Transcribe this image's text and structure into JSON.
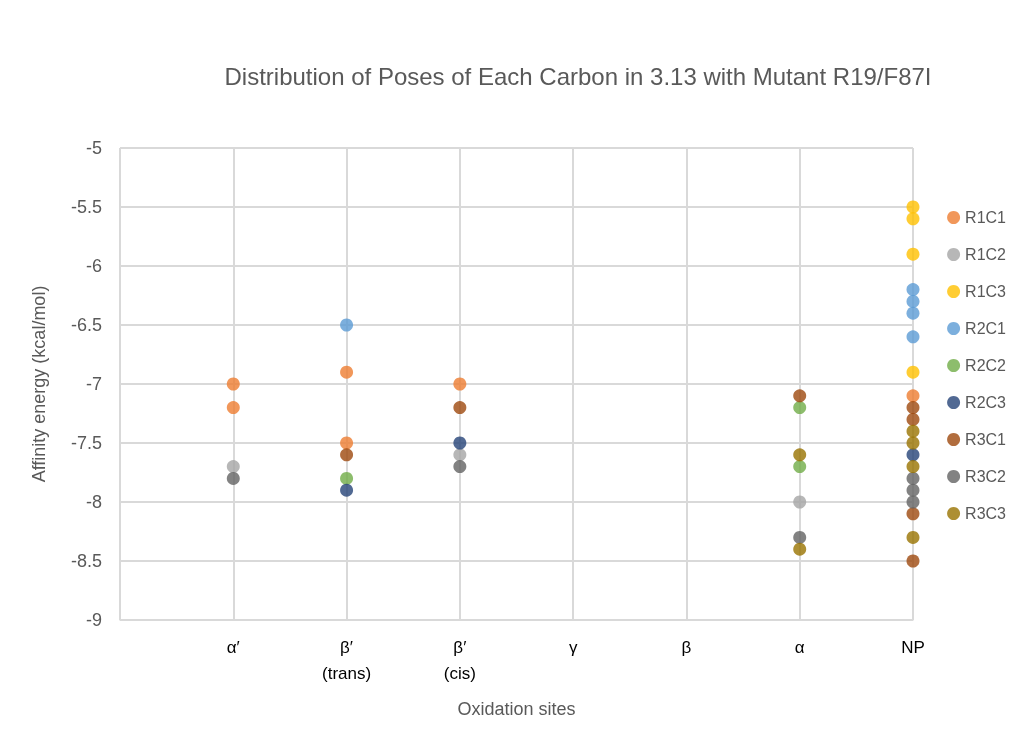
{
  "chart_data": {
    "type": "scatter",
    "title": "Distribution of Poses of Each Carbon in 3.13 with Mutant R19/F87I",
    "xlabel": "Oxidation sites",
    "ylabel": "Affinity energy (kcal/mol)",
    "categories": [
      null,
      "α′",
      "β′\n(trans)",
      "β′\n(cis)",
      "γ",
      "β",
      "α",
      "NP"
    ],
    "ylim": [
      -9,
      -5
    ],
    "yticks": [
      -9,
      -8.5,
      -8,
      -7.5,
      -7,
      -6.5,
      -6,
      -5.5,
      -5
    ],
    "grid": true,
    "legend": "right",
    "marker": "circle",
    "series": [
      {
        "name": "R1C1",
        "color": "#ed7d31",
        "x": [
          "α′",
          "α′",
          "β′\n(trans)",
          "β′\n(trans)",
          "β′\n(cis)",
          "NP"
        ],
        "values": [
          -7.0,
          -7.2,
          -6.9,
          -7.5,
          -7.0,
          -7.1
        ]
      },
      {
        "name": "R1C2",
        "color": "#a5a5a5",
        "x": [
          "α′",
          "β′\n(cis)",
          "α"
        ],
        "values": [
          -7.7,
          -7.6,
          -8.0
        ]
      },
      {
        "name": "R1C3",
        "color": "#ffc000",
        "x": [
          "NP",
          "NP",
          "NP",
          "NP"
        ],
        "values": [
          -5.5,
          -5.6,
          -5.9,
          -6.9
        ]
      },
      {
        "name": "R2C1",
        "color": "#5b9bd5",
        "x": [
          "β′\n(trans)",
          "NP",
          "NP",
          "NP",
          "NP"
        ],
        "values": [
          -6.5,
          -6.2,
          -6.3,
          -6.4,
          -6.6
        ]
      },
      {
        "name": "R2C2",
        "color": "#70ad47",
        "x": [
          "β′\n(trans)",
          "α",
          "α"
        ],
        "values": [
          -7.8,
          -7.2,
          -7.7
        ]
      },
      {
        "name": "R2C3",
        "color": "#264478",
        "x": [
          "β′\n(trans)",
          "β′\n(cis)",
          "NP"
        ],
        "values": [
          -7.9,
          -7.5,
          -7.6
        ]
      },
      {
        "name": "R3C1",
        "color": "#9e480e",
        "x": [
          "β′\n(trans)",
          "β′\n(cis)",
          "α",
          "NP",
          "NP",
          "NP",
          "NP"
        ],
        "values": [
          -7.6,
          -7.2,
          -7.1,
          -7.2,
          -7.3,
          -8.1,
          -8.5
        ]
      },
      {
        "name": "R3C2",
        "color": "#636363",
        "x": [
          "α′",
          "β′\n(cis)",
          "α",
          "NP",
          "NP",
          "NP"
        ],
        "values": [
          -7.8,
          -7.7,
          -8.3,
          -7.8,
          -7.9,
          -8.0
        ]
      },
      {
        "name": "R3C3",
        "color": "#997300",
        "x": [
          "α",
          "α",
          "NP",
          "NP",
          "NP",
          "NP"
        ],
        "values": [
          -7.6,
          -8.4,
          -7.4,
          -7.5,
          -7.7,
          -8.3
        ]
      }
    ]
  }
}
